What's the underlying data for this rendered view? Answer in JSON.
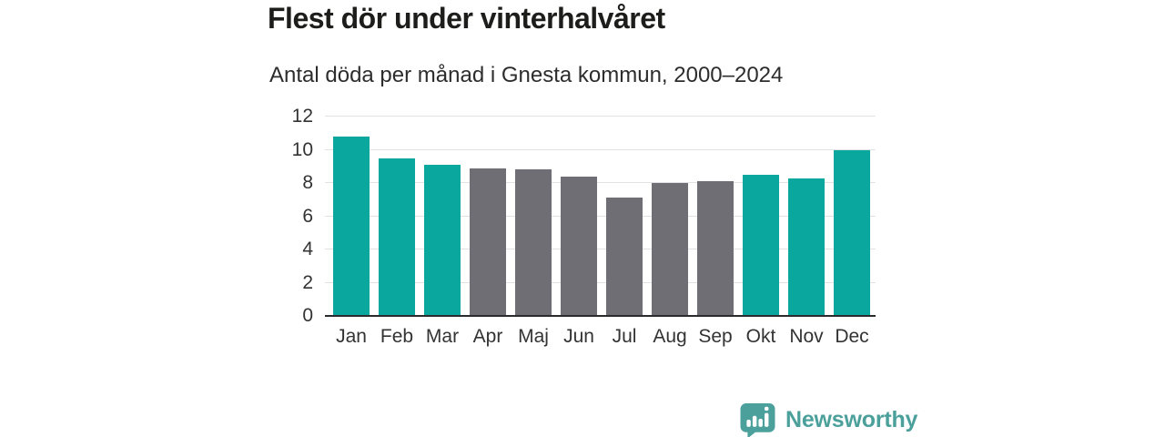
{
  "chart_data": {
    "type": "bar",
    "title": "Flest dör under vinterhalvåret",
    "subtitle": "Antal döda per månad i Gnesta kommun, 2000–2024",
    "categories": [
      "Jan",
      "Feb",
      "Mar",
      "Apr",
      "Maj",
      "Jun",
      "Jul",
      "Aug",
      "Sep",
      "Okt",
      "Nov",
      "Dec"
    ],
    "values": [
      10.8,
      9.5,
      9.1,
      8.9,
      8.8,
      8.4,
      7.1,
      8.0,
      8.1,
      8.5,
      8.3,
      10.0
    ],
    "bar_colors": [
      "highlight",
      "highlight",
      "highlight",
      "base",
      "base",
      "base",
      "base",
      "base",
      "base",
      "highlight",
      "highlight",
      "highlight"
    ],
    "colors": {
      "highlight": "#0aa79e",
      "base": "#6f6e74",
      "gridline": "#e2e2e4",
      "axis_line": "#2b2b2e",
      "tick_text": "#333333"
    },
    "xlabel": "",
    "ylabel": "",
    "ylim": [
      0,
      12
    ],
    "yticks": [
      0,
      2,
      4,
      6,
      8,
      10,
      12
    ],
    "grid": true,
    "legend": "none"
  },
  "footer": {
    "brand": "Newsworthy",
    "brand_color": "#4ba09c"
  }
}
